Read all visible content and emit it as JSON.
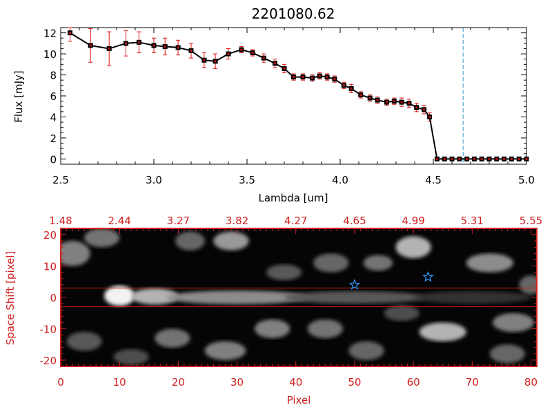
{
  "chart_data": [
    {
      "type": "line",
      "title": "2201080.62",
      "xlabel": "Lambda [um]",
      "ylabel": "Flux [mJy]",
      "xlim": [
        2.5,
        5.0
      ],
      "ylim": [
        -0.5,
        12.5
      ],
      "xticks": [
        "2.5",
        "3.0",
        "3.5",
        "4.0",
        "4.5",
        "5.0"
      ],
      "yticks": [
        "0",
        "2",
        "4",
        "6",
        "8",
        "10",
        "12"
      ],
      "vline_x": 4.66,
      "series": [
        {
          "x": [
            2.55,
            2.66,
            2.76,
            2.85,
            2.92,
            3.0,
            3.06,
            3.13,
            3.2,
            3.27,
            3.33,
            3.4,
            3.47,
            3.53,
            3.59,
            3.65,
            3.7,
            3.75,
            3.8,
            3.85,
            3.89,
            3.93,
            3.97,
            4.02,
            4.06,
            4.11,
            4.16,
            4.2,
            4.25,
            4.29,
            4.33,
            4.37,
            4.41,
            4.45,
            4.48,
            4.52,
            4.56,
            4.6,
            4.64,
            4.68,
            4.72,
            4.76,
            4.8,
            4.84,
            4.88,
            4.92,
            4.96,
            5.0
          ],
          "y": [
            12.0,
            10.8,
            10.5,
            11.0,
            11.1,
            10.8,
            10.7,
            10.6,
            10.3,
            9.4,
            9.3,
            10.0,
            10.4,
            10.1,
            9.6,
            9.1,
            8.6,
            7.8,
            7.8,
            7.7,
            7.9,
            7.8,
            7.6,
            7.0,
            6.7,
            6.1,
            5.8,
            5.6,
            5.4,
            5.5,
            5.4,
            5.3,
            4.9,
            4.7,
            4.0,
            0.0,
            0.0,
            0.0,
            0.0,
            0.0,
            0.0,
            0.0,
            0.0,
            0.0,
            0.0,
            0.0,
            0.0,
            0.0
          ],
          "err": [
            0.8,
            1.6,
            1.6,
            1.2,
            1.0,
            0.7,
            0.8,
            0.7,
            0.7,
            0.7,
            0.7,
            0.5,
            0.3,
            0.3,
            0.4,
            0.4,
            0.4,
            0.3,
            0.3,
            0.3,
            0.3,
            0.3,
            0.3,
            0.3,
            0.4,
            0.3,
            0.3,
            0.3,
            0.3,
            0.3,
            0.4,
            0.4,
            0.4,
            0.4,
            0.4,
            0.1,
            0.1,
            0.1,
            0.1,
            0.1,
            0.1,
            0.1,
            0.1,
            0.1,
            0.1,
            0.1,
            0.1,
            0.1
          ]
        }
      ]
    },
    {
      "type": "heatmap",
      "xlabel": "Pixel",
      "ylabel": "Space Shift [pixel]",
      "xlim": [
        0,
        81
      ],
      "ylim": [
        -22,
        22
      ],
      "xticks": [
        "0",
        "10",
        "20",
        "30",
        "40",
        "50",
        "60",
        "70",
        "80"
      ],
      "yticks": [
        "-20",
        "-10",
        "0",
        "10",
        "20"
      ],
      "top_ticks": [
        "1.48",
        "2.44",
        "3.27",
        "3.82",
        "4.27",
        "4.65",
        "4.99",
        "5.31",
        "5.55"
      ],
      "aperture_lines_y": [
        3,
        -3
      ],
      "stars": [
        {
          "x": 50,
          "y": 4
        },
        {
          "x": 62.5,
          "y": 6.5
        }
      ],
      "blobs": [
        {
          "x": 10,
          "y": 0.5,
          "sx": 2.6,
          "sy": 3.2,
          "a": 0.95
        },
        {
          "x": 16,
          "y": 0.3,
          "sx": 4,
          "sy": 2.6,
          "a": 0.7
        },
        {
          "x": 30,
          "y": 0,
          "sx": 12,
          "sy": 2.2,
          "a": 0.55
        },
        {
          "x": 50,
          "y": 0,
          "sx": 12,
          "sy": 2.0,
          "a": 0.35
        },
        {
          "x": 70,
          "y": 0,
          "sx": 10,
          "sy": 2.0,
          "a": 0.2
        },
        {
          "x": 2,
          "y": 14,
          "sx": 3,
          "sy": 4,
          "a": 0.5
        },
        {
          "x": 7,
          "y": 19,
          "sx": 3,
          "sy": 3,
          "a": 0.45
        },
        {
          "x": 22,
          "y": 18,
          "sx": 2.5,
          "sy": 3,
          "a": 0.4
        },
        {
          "x": 29,
          "y": 18,
          "sx": 3,
          "sy": 3,
          "a": 0.6
        },
        {
          "x": 38,
          "y": 8,
          "sx": 3,
          "sy": 2.5,
          "a": 0.35
        },
        {
          "x": 46,
          "y": 11,
          "sx": 3,
          "sy": 3,
          "a": 0.4
        },
        {
          "x": 60,
          "y": 16,
          "sx": 3,
          "sy": 3.5,
          "a": 0.7
        },
        {
          "x": 73,
          "y": 11,
          "sx": 4,
          "sy": 3,
          "a": 0.55
        },
        {
          "x": 80,
          "y": 4,
          "sx": 2,
          "sy": 3,
          "a": 0.4
        },
        {
          "x": 54,
          "y": 11,
          "sx": 2.5,
          "sy": 2.5,
          "a": 0.45
        },
        {
          "x": 4,
          "y": -14,
          "sx": 3,
          "sy": 3,
          "a": 0.35
        },
        {
          "x": 19,
          "y": -13,
          "sx": 3,
          "sy": 3,
          "a": 0.45
        },
        {
          "x": 28,
          "y": -17,
          "sx": 3.5,
          "sy": 3,
          "a": 0.5
        },
        {
          "x": 36,
          "y": -10,
          "sx": 3,
          "sy": 3,
          "a": 0.5
        },
        {
          "x": 45,
          "y": -10,
          "sx": 3,
          "sy": 3,
          "a": 0.45
        },
        {
          "x": 52,
          "y": -17,
          "sx": 3,
          "sy": 3,
          "a": 0.4
        },
        {
          "x": 65,
          "y": -11,
          "sx": 4,
          "sy": 3,
          "a": 0.7
        },
        {
          "x": 77,
          "y": -8,
          "sx": 3.5,
          "sy": 3,
          "a": 0.5
        },
        {
          "x": 76,
          "y": -18,
          "sx": 3,
          "sy": 3,
          "a": 0.4
        },
        {
          "x": 12,
          "y": -19,
          "sx": 3,
          "sy": 2.5,
          "a": 0.3
        },
        {
          "x": 58,
          "y": -5,
          "sx": 3,
          "sy": 2.5,
          "a": 0.3
        }
      ]
    }
  ]
}
